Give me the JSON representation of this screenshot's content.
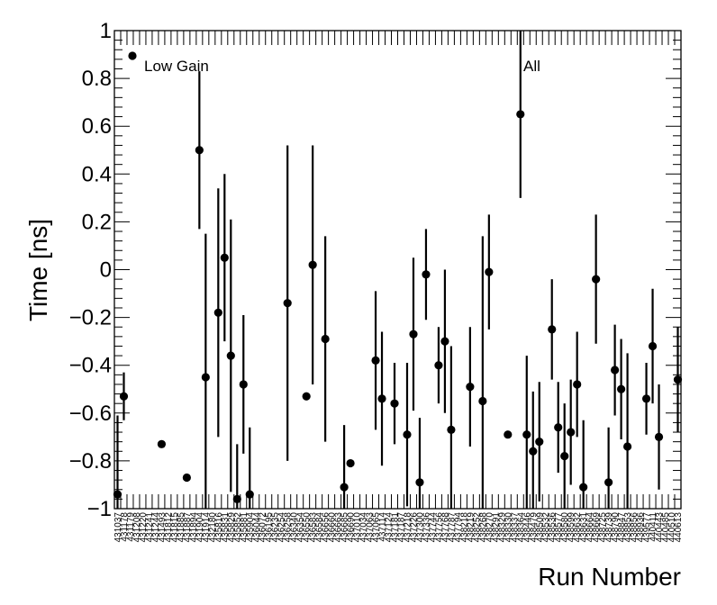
{
  "chart_data": {
    "type": "scatter",
    "title": "",
    "xlabel": "Run Number",
    "ylabel": "Time [ns]",
    "ylim": [
      -1,
      1
    ],
    "yticks": [
      "−1",
      "−0.8",
      "−0.6",
      "−0.4",
      "−0.2",
      "0",
      "0.2",
      "0.4",
      "0.6",
      "0.8",
      "1"
    ],
    "grid": false,
    "legend": [
      {
        "text": "Low Gain",
        "marker": true,
        "placement": "top-left"
      },
      {
        "text": "All",
        "marker": false,
        "placement": "top-right"
      }
    ],
    "categories": [
      "431037",
      "431178",
      "431179",
      "431208",
      "431220",
      "431241",
      "431244",
      "431493",
      "431812",
      "431815",
      "431885",
      "431887",
      "431894",
      "431904",
      "431914",
      "432180",
      "435816",
      "435831",
      "435829",
      "435852",
      "435881",
      "435904",
      "436044",
      "436072",
      "436195",
      "436235",
      "436254",
      "436258",
      "436340",
      "436354",
      "436550",
      "436583",
      "436584",
      "436656",
      "436660",
      "436663",
      "436685",
      "436690",
      "437010",
      "437034",
      "437063",
      "437065",
      "437114",
      "437124",
      "437181",
      "437187",
      "437218",
      "437226",
      "437300",
      "437336",
      "437744",
      "437756",
      "437768",
      "437787",
      "437794",
      "438218",
      "438219",
      "438252",
      "438268",
      "438270",
      "438291",
      "438329",
      "438330",
      "438337",
      "438364",
      "438446",
      "438479",
      "438509",
      "438532",
      "438536",
      "438577",
      "438580",
      "438599",
      "438632",
      "438631",
      "438664",
      "438669",
      "438725",
      "438739",
      "438790",
      "438847",
      "438853",
      "438856",
      "438936",
      "439577",
      "440411",
      "440443",
      "440485",
      "440510",
      "440613"
    ],
    "series": [
      {
        "points": [
          {
            "run": "431037",
            "y": -0.94,
            "err": 0.33
          },
          {
            "run": "431178",
            "y": -0.53,
            "err": 0.1
          },
          {
            "run": "431493",
            "y": -0.73,
            "err": 0.0
          },
          {
            "run": "431887",
            "y": -0.87,
            "err": 0.0
          },
          {
            "run": "431904",
            "y": 0.5,
            "err": 0.33
          },
          {
            "run": "431914",
            "y": -0.45,
            "err": 0.6
          },
          {
            "run": "435816",
            "y": -0.18,
            "err": 0.52
          },
          {
            "run": "435831",
            "y": 0.05,
            "err": 0.35
          },
          {
            "run": "435829",
            "y": -0.36,
            "err": 0.57
          },
          {
            "run": "435852",
            "y": -0.96,
            "err": 0.23
          },
          {
            "run": "435881",
            "y": -0.48,
            "err": 0.29
          },
          {
            "run": "435904",
            "y": -0.94,
            "err": 0.28
          },
          {
            "run": "436258",
            "y": -0.14,
            "err": 0.66
          },
          {
            "run": "436550",
            "y": -0.53,
            "err": 0.0
          },
          {
            "run": "436583",
            "y": 0.02,
            "err": 0.5
          },
          {
            "run": "436656",
            "y": -0.29,
            "err": 0.43
          },
          {
            "run": "436685",
            "y": -0.91,
            "err": 0.26
          },
          {
            "run": "436690",
            "y": -0.81,
            "err": 0.0
          },
          {
            "run": "437065",
            "y": -0.38,
            "err": 0.29
          },
          {
            "run": "437114",
            "y": -0.54,
            "err": 0.28
          },
          {
            "run": "437181",
            "y": -0.56,
            "err": 0.17
          },
          {
            "run": "437218",
            "y": -0.69,
            "err": 0.3
          },
          {
            "run": "437226",
            "y": -0.27,
            "err": 0.32
          },
          {
            "run": "437300",
            "y": -0.89,
            "err": 0.27
          },
          {
            "run": "437336",
            "y": -0.02,
            "err": 0.19
          },
          {
            "run": "437756",
            "y": -0.4,
            "err": 0.16
          },
          {
            "run": "437768",
            "y": -0.3,
            "err": 0.3
          },
          {
            "run": "437787",
            "y": -0.67,
            "err": 0.35
          },
          {
            "run": "438219",
            "y": -0.49,
            "err": 0.25
          },
          {
            "run": "438268",
            "y": -0.55,
            "err": 0.69
          },
          {
            "run": "438270",
            "y": -0.01,
            "err": 0.24
          },
          {
            "run": "438330",
            "y": -0.69,
            "err": 0.0
          },
          {
            "run": "438364",
            "y": 0.65,
            "err": 0.35
          },
          {
            "run": "438446",
            "y": -0.69,
            "err": 0.33
          },
          {
            "run": "438479",
            "y": -0.76,
            "err": 0.25
          },
          {
            "run": "438509",
            "y": -0.72,
            "err": 0.25
          },
          {
            "run": "438536",
            "y": -0.25,
            "err": 0.21
          },
          {
            "run": "438577",
            "y": -0.66,
            "err": 0.19
          },
          {
            "run": "438580",
            "y": -0.78,
            "err": 0.22
          },
          {
            "run": "438599",
            "y": -0.68,
            "err": 0.22
          },
          {
            "run": "438632",
            "y": -0.48,
            "err": 0.22
          },
          {
            "run": "438631",
            "y": -0.91,
            "err": 0.28
          },
          {
            "run": "438669",
            "y": -0.04,
            "err": 0.27
          },
          {
            "run": "438739",
            "y": -0.89,
            "err": 0.23
          },
          {
            "run": "438790",
            "y": -0.42,
            "err": 0.19
          },
          {
            "run": "438847",
            "y": -0.5,
            "err": 0.21
          },
          {
            "run": "438853",
            "y": -0.74,
            "err": 0.39
          },
          {
            "run": "439577",
            "y": -0.54,
            "err": 0.15
          },
          {
            "run": "440411",
            "y": -0.32,
            "err": 0.24
          },
          {
            "run": "440443",
            "y": -0.7,
            "err": 0.22
          },
          {
            "run": "440613",
            "y": -0.46,
            "err": 0.22
          }
        ]
      }
    ]
  }
}
